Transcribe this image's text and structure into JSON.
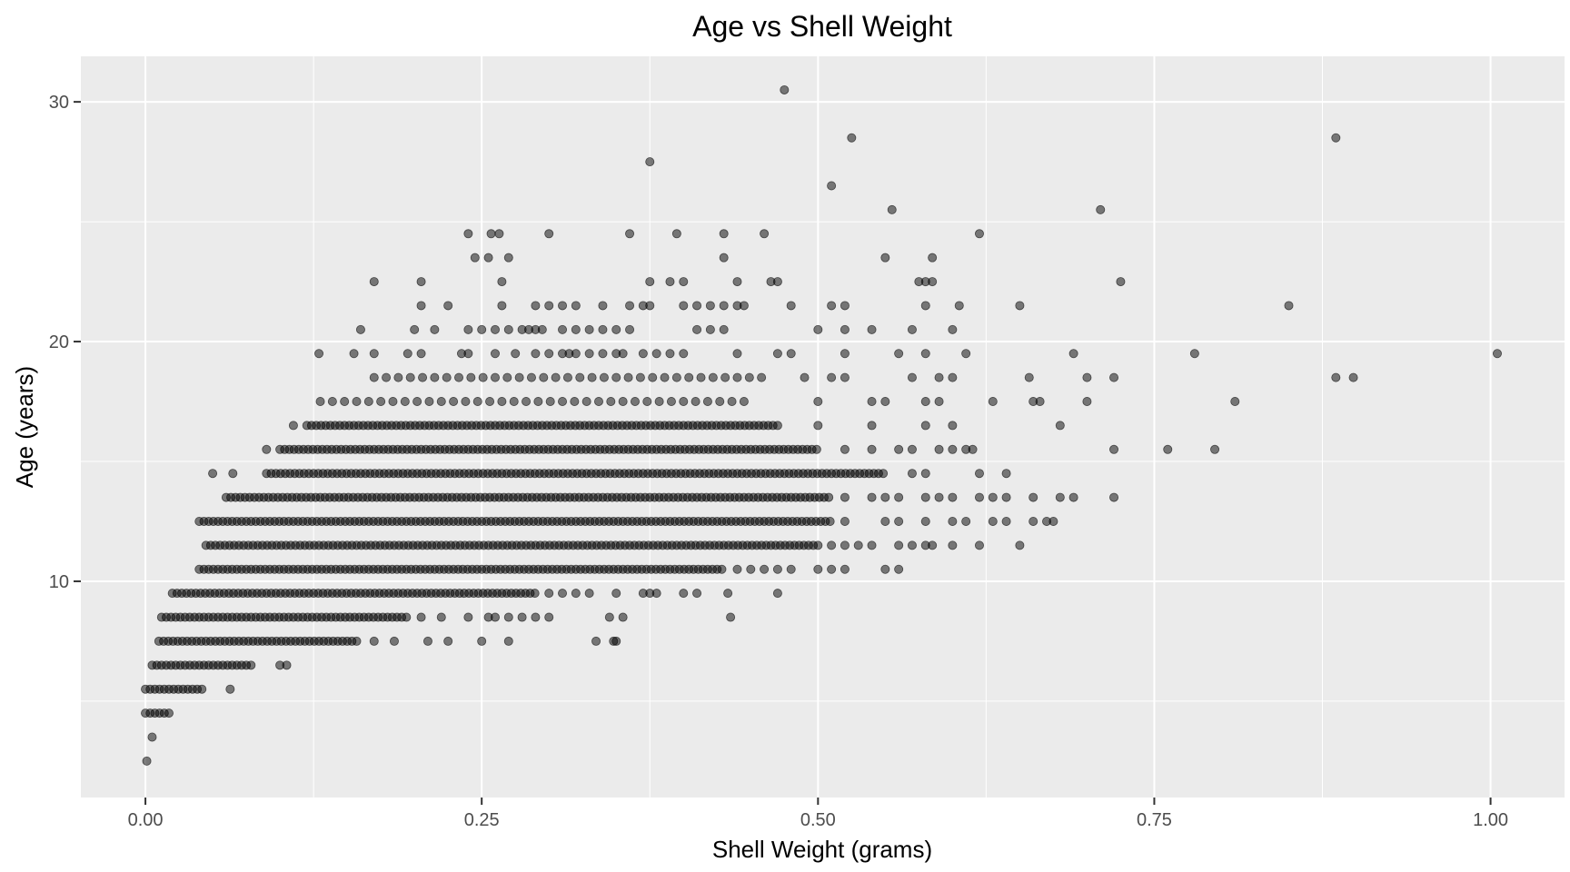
{
  "chart_data": {
    "type": "scatter",
    "title": "Age vs Shell Weight",
    "xlabel": "Shell Weight (grams)",
    "ylabel": "Age (years)",
    "xlim": [
      -0.048,
      1.055
    ],
    "ylim": [
      0.98,
      31.9
    ],
    "x_ticks": [
      0,
      0.25,
      0.5,
      0.75,
      1.0
    ],
    "x_tick_labels": [
      "0.00",
      "0.25",
      "0.50",
      "0.75",
      "1.00"
    ],
    "y_ticks": [
      10,
      20,
      30
    ],
    "y_tick_labels": [
      "10",
      "20",
      "30"
    ],
    "grid": true,
    "point_color": "#000000",
    "point_alpha": 0.5,
    "panel_background": "#EBEBEB",
    "note": "rows: each age level lists a densely filled shell-weight range plus individual points",
    "rows": [
      {
        "age": 2.5,
        "x": [
          0.001
        ]
      },
      {
        "age": 3.5,
        "x": [
          0.005
        ]
      },
      {
        "age": 4.5,
        "range": [
          0.0,
          0.018
        ],
        "x": []
      },
      {
        "age": 5.5,
        "range": [
          0.0,
          0.045
        ],
        "x": [
          0.063
        ]
      },
      {
        "age": 6.5,
        "range": [
          0.005,
          0.08
        ],
        "x": [
          0.1,
          0.105
        ]
      },
      {
        "age": 7.5,
        "range": [
          0.01,
          0.16
        ],
        "x": [
          0.17,
          0.185,
          0.21,
          0.225,
          0.25,
          0.27,
          0.335,
          0.348,
          0.35
        ]
      },
      {
        "age": 8.5,
        "range": [
          0.012,
          0.195
        ],
        "x": [
          0.205,
          0.22,
          0.24,
          0.255,
          0.26,
          0.27,
          0.28,
          0.29,
          0.3,
          0.345,
          0.355,
          0.435
        ]
      },
      {
        "age": 9.5,
        "range": [
          0.02,
          0.29
        ],
        "x": [
          0.3,
          0.31,
          0.32,
          0.33,
          0.35,
          0.37,
          0.375,
          0.38,
          0.4,
          0.41,
          0.433,
          0.47
        ]
      },
      {
        "age": 10.5,
        "range": [
          0.04,
          0.43
        ],
        "x": [
          0.44,
          0.45,
          0.46,
          0.47,
          0.48,
          0.5,
          0.51,
          0.52,
          0.55,
          0.56
        ]
      },
      {
        "age": 11.5,
        "range": [
          0.045,
          0.5
        ],
        "x": [
          0.51,
          0.52,
          0.53,
          0.54,
          0.56,
          0.57,
          0.58,
          0.585,
          0.6,
          0.62,
          0.65
        ]
      },
      {
        "age": 12.5,
        "range": [
          0.04,
          0.51
        ],
        "x": [
          0.52,
          0.55,
          0.56,
          0.58,
          0.6,
          0.61,
          0.63,
          0.64,
          0.66,
          0.67,
          0.675
        ]
      },
      {
        "age": 13.5,
        "range": [
          0.06,
          0.51
        ],
        "x": [
          0.52,
          0.54,
          0.55,
          0.56,
          0.58,
          0.59,
          0.6,
          0.62,
          0.63,
          0.64,
          0.66,
          0.68,
          0.69,
          0.72
        ]
      },
      {
        "age": 14.5,
        "range": [
          0.09,
          0.55
        ],
        "x": [
          0.05,
          0.065,
          0.57,
          0.58,
          0.62,
          0.64
        ]
      },
      {
        "age": 15.5,
        "range": [
          0.1,
          0.5
        ],
        "x": [
          0.09,
          0.52,
          0.54,
          0.56,
          0.57,
          0.59,
          0.6,
          0.61,
          0.615,
          0.72,
          0.76,
          0.795
        ]
      },
      {
        "age": 16.5,
        "range": [
          0.12,
          0.47
        ],
        "x": [
          0.11,
          0.5,
          0.54,
          0.58,
          0.6,
          0.68
        ]
      },
      {
        "age": 17.5,
        "range": [
          0.13,
          0.45
        ],
        "sparse": true,
        "x": [
          0.5,
          0.54,
          0.55,
          0.58,
          0.59,
          0.63,
          0.66,
          0.665,
          0.7,
          0.81
        ]
      },
      {
        "age": 18.5,
        "range": [
          0.17,
          0.46
        ],
        "sparse": true,
        "x": [
          0.49,
          0.51,
          0.52,
          0.57,
          0.59,
          0.6,
          0.657,
          0.7,
          0.72,
          0.885,
          0.898
        ]
      },
      {
        "age": 19.5,
        "x": [
          0.129,
          0.155,
          0.17,
          0.195,
          0.205,
          0.235,
          0.24,
          0.26,
          0.275,
          0.29,
          0.3,
          0.31,
          0.315,
          0.32,
          0.33,
          0.34,
          0.35,
          0.355,
          0.37,
          0.38,
          0.39,
          0.4,
          0.44,
          0.47,
          0.48,
          0.52,
          0.56,
          0.58,
          0.61,
          0.69,
          0.78,
          1.005
        ]
      },
      {
        "age": 20.5,
        "x": [
          0.16,
          0.2,
          0.215,
          0.24,
          0.25,
          0.26,
          0.27,
          0.28,
          0.285,
          0.29,
          0.295,
          0.31,
          0.32,
          0.33,
          0.34,
          0.35,
          0.36,
          0.41,
          0.42,
          0.43,
          0.5,
          0.52,
          0.54,
          0.57,
          0.6
        ]
      },
      {
        "age": 21.5,
        "x": [
          0.205,
          0.225,
          0.265,
          0.29,
          0.3,
          0.31,
          0.32,
          0.34,
          0.36,
          0.37,
          0.375,
          0.4,
          0.41,
          0.42,
          0.43,
          0.44,
          0.445,
          0.48,
          0.51,
          0.52,
          0.58,
          0.605,
          0.65,
          0.85
        ]
      },
      {
        "age": 22.5,
        "x": [
          0.17,
          0.205,
          0.265,
          0.375,
          0.39,
          0.4,
          0.44,
          0.465,
          0.47,
          0.575,
          0.58,
          0.585,
          0.725
        ]
      },
      {
        "age": 23.5,
        "x": [
          0.245,
          0.255,
          0.27,
          0.43,
          0.55,
          0.585
        ]
      },
      {
        "age": 24.5,
        "x": [
          0.24,
          0.257,
          0.263,
          0.3,
          0.36,
          0.395,
          0.43,
          0.46,
          0.62
        ]
      },
      {
        "age": 25.5,
        "x": [
          0.555,
          0.71
        ]
      },
      {
        "age": 26.5,
        "x": [
          0.51
        ]
      },
      {
        "age": 27.5,
        "x": [
          0.375
        ]
      },
      {
        "age": 28.5,
        "x": [
          0.525,
          0.885
        ]
      },
      {
        "age": 30.5,
        "x": [
          0.475
        ]
      }
    ]
  }
}
